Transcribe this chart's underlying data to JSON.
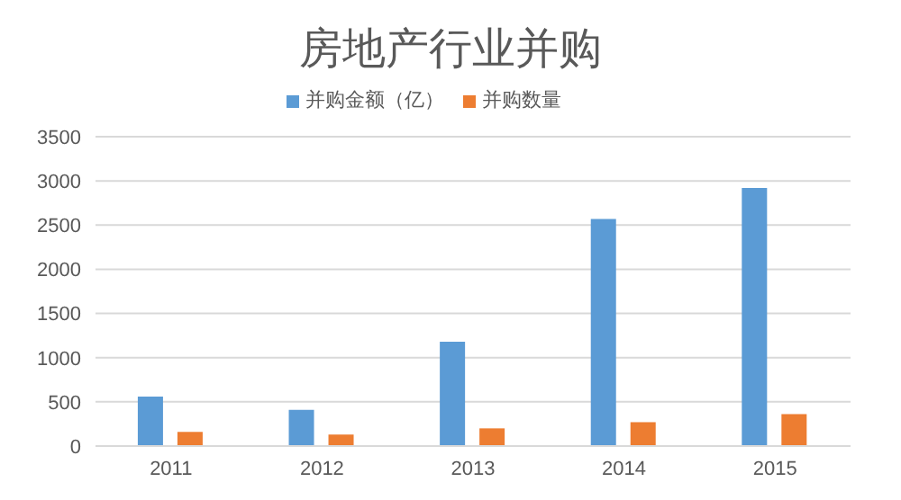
{
  "chart_data": {
    "type": "bar",
    "title": "房地产行业并购",
    "categories": [
      "2011",
      "2012",
      "2013",
      "2014",
      "2015"
    ],
    "series": [
      {
        "name": "并购金额（亿）",
        "color": "#5b9bd5",
        "values": [
          560,
          410,
          1180,
          2570,
          2920
        ]
      },
      {
        "name": "并购数量",
        "color": "#ed7d31",
        "values": [
          160,
          130,
          200,
          270,
          360
        ]
      }
    ],
    "ylim": [
      0,
      3500
    ],
    "yticks": [
      0,
      500,
      1000,
      1500,
      2000,
      2500,
      3000,
      3500
    ],
    "grid": "y",
    "legend": "top"
  }
}
